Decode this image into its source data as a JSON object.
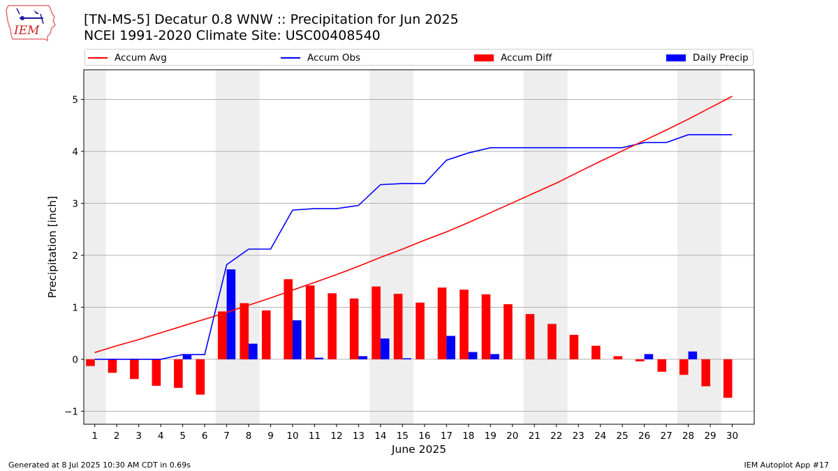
{
  "logo": {
    "text": "IEM"
  },
  "header": {
    "title_line1": "[TN-MS-5] Decatur 0.8 WNW :: Precipitation for Jun 2025",
    "title_line2": "NCEI 1991-2020 Climate Site: USC00408540"
  },
  "legend": {
    "items": [
      {
        "label": "Accum Avg",
        "kind": "line",
        "color": "#ff0000"
      },
      {
        "label": "Accum Obs",
        "kind": "line",
        "color": "#0000ff"
      },
      {
        "label": "Accum Diff",
        "kind": "bar",
        "color": "#ff0000"
      },
      {
        "label": "Daily Precip",
        "kind": "bar",
        "color": "#0000ff"
      }
    ]
  },
  "chart_data": {
    "type": "bar",
    "xlabel": "June 2025",
    "ylabel": "Precipitation [inch]",
    "ylim": [
      -1.25,
      5.57
    ],
    "xlim": [
      0.5,
      31.0
    ],
    "yticks": [
      -1,
      0,
      1,
      2,
      3,
      4,
      5
    ],
    "grid": "horizontal",
    "legend_position": "top",
    "weekend_shading": [
      [
        0.5,
        1.5
      ],
      [
        6.5,
        8.5
      ],
      [
        13.5,
        15.5
      ],
      [
        20.5,
        22.5
      ],
      [
        27.5,
        29.5
      ]
    ],
    "shade_color": "#eeeeee",
    "days": [
      1,
      2,
      3,
      4,
      5,
      6,
      7,
      8,
      9,
      10,
      11,
      12,
      13,
      14,
      15,
      16,
      17,
      18,
      19,
      20,
      21,
      22,
      23,
      24,
      25,
      26,
      27,
      28,
      29,
      30
    ],
    "series": [
      {
        "name": "Accum Avg",
        "kind": "line",
        "color": "#ff0000",
        "values": [
          0.13,
          0.26,
          0.38,
          0.51,
          0.64,
          0.77,
          0.9,
          1.04,
          1.18,
          1.33,
          1.48,
          1.63,
          1.79,
          1.96,
          2.12,
          2.29,
          2.45,
          2.63,
          2.82,
          3.01,
          3.2,
          3.39,
          3.6,
          3.81,
          4.01,
          4.21,
          4.41,
          4.62,
          4.84,
          5.06
        ]
      },
      {
        "name": "Accum Obs",
        "kind": "line",
        "color": "#0000ff",
        "values": [
          0.0,
          0.0,
          0.0,
          0.0,
          0.09,
          0.09,
          1.82,
          2.12,
          2.12,
          2.87,
          2.9,
          2.9,
          2.96,
          3.36,
          3.38,
          3.38,
          3.83,
          3.97,
          4.07,
          4.07,
          4.07,
          4.07,
          4.07,
          4.07,
          4.07,
          4.17,
          4.17,
          4.32,
          4.32,
          4.32
        ]
      },
      {
        "name": "Accum Diff",
        "kind": "bar",
        "color": "#ff0000",
        "values": [
          -0.13,
          -0.26,
          -0.38,
          -0.51,
          -0.55,
          -0.68,
          0.92,
          1.08,
          0.94,
          1.54,
          1.42,
          1.27,
          1.17,
          1.4,
          1.26,
          1.09,
          1.38,
          1.34,
          1.25,
          1.06,
          0.87,
          0.68,
          0.47,
          0.26,
          0.06,
          -0.04,
          -0.24,
          -0.3,
          -0.52,
          -0.74
        ]
      },
      {
        "name": "Daily Precip",
        "kind": "bar",
        "color": "#0000ff",
        "values": [
          0,
          0,
          0,
          0,
          0.09,
          0,
          1.73,
          0.3,
          0,
          0.75,
          0.03,
          0,
          0.06,
          0.4,
          0.02,
          0,
          0.45,
          0.14,
          0.1,
          0,
          0,
          0,
          0,
          0,
          0,
          0.1,
          0,
          0.15,
          0,
          0
        ]
      }
    ]
  },
  "footer": {
    "left": "Generated at 8 Jul 2025 10:30 AM CDT in 0.69s",
    "right": "IEM Autoplot App #17"
  }
}
